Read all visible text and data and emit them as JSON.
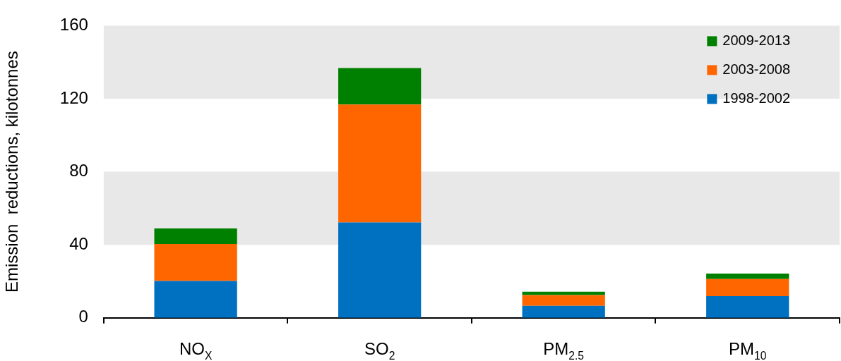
{
  "chart_data": {
    "type": "bar",
    "stacked": true,
    "ylabel": "Emission  reductions, kilotonnes",
    "categories": [
      "NO$_{X}$",
      "SO$_{2}$",
      "PM$_{2.5}$",
      "PM$_{10}$"
    ],
    "series": [
      {
        "name": "1998-2002",
        "color": "#0070c0",
        "values": [
          20.2,
          52.2,
          6.6,
          11.9
        ]
      },
      {
        "name": "2003-2008",
        "color": "#ff6600",
        "values": [
          20.3,
          64.6,
          5.9,
          9.4
        ]
      },
      {
        "name": "2009-2013",
        "color": "#008000",
        "values": [
          8.5,
          20.0,
          1.8,
          2.9
        ]
      }
    ],
    "ylim": [
      0,
      160
    ],
    "yticks": [
      0,
      40,
      80,
      120,
      160
    ],
    "grid": false,
    "legend": "top right",
    "bands": [
      {
        "axis": "y",
        "from": 40,
        "to": 80,
        "color": "#e8e8e8"
      },
      {
        "axis": "y",
        "from": 120,
        "to": 160,
        "color": "#e8e8e8"
      }
    ]
  }
}
